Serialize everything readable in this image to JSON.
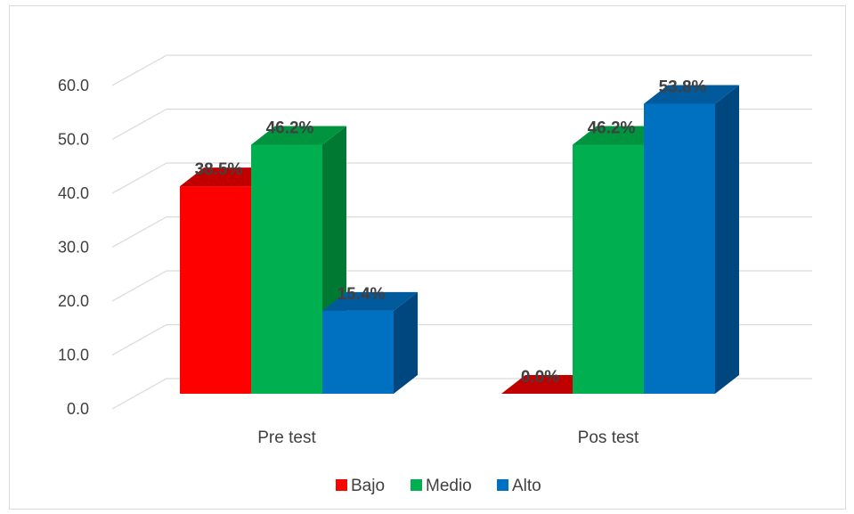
{
  "chart_data": {
    "type": "bar",
    "title": "",
    "xlabel": "",
    "ylabel": "",
    "categories": [
      "Pre test",
      "Pos test"
    ],
    "series": [
      {
        "name": "Bajo",
        "values": [
          38.5,
          0.0
        ],
        "labels": [
          "38.5%",
          "0.0%"
        ],
        "color": "#ff0000",
        "top_color": "#c00000",
        "side_color": "#a00000"
      },
      {
        "name": "Medio",
        "values": [
          46.2,
          46.2
        ],
        "labels": [
          "46.2%",
          "46.2%"
        ],
        "color": "#00b050",
        "top_color": "#00943f",
        "side_color": "#007a33"
      },
      {
        "name": "Alto",
        "values": [
          15.4,
          53.8
        ],
        "labels": [
          "15.4%",
          "53.8%"
        ],
        "color": "#0070c0",
        "top_color": "#005a9c",
        "side_color": "#00477f"
      }
    ],
    "ylim": [
      0,
      60
    ],
    "yticks": [
      "0.0",
      "10.0",
      "20.0",
      "30.0",
      "40.0",
      "50.0",
      "60.0"
    ],
    "grid": true,
    "legend": "bottom",
    "style": "3d-clustered-column"
  }
}
